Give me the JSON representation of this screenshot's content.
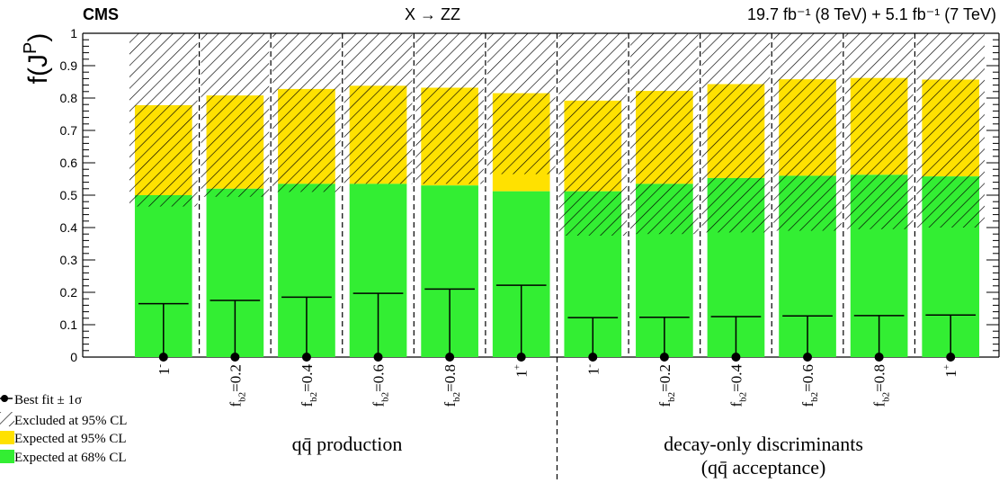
{
  "header": {
    "experiment": "CMS",
    "process": "X → ZZ",
    "lumi": "19.7 fb⁻¹ (8 TeV) + 5.1 fb⁻¹ (7 TeV)"
  },
  "legend": {
    "best_fit": "Best fit ± 1σ",
    "excluded": "Excluded at 95% CL",
    "exp95": "Expected at 95% CL",
    "exp68": "Expected at 68% CL"
  },
  "groups": {
    "production": "qq̄ production",
    "decay_line1": "decay-only discriminants",
    "decay_line2": "(qq̄ acceptance)"
  },
  "colors": {
    "green": "#33ee33",
    "yellow": "#ffe100",
    "hatch": "#000000",
    "line": "#000000"
  },
  "chart_data": {
    "type": "bar",
    "ylabel": "f(J^P)",
    "ylim": [
      0,
      1
    ],
    "yticks": [
      "0",
      "0.1",
      "0.2",
      "0.3",
      "0.4",
      "0.5",
      "0.6",
      "0.7",
      "0.8",
      "0.9",
      "1"
    ],
    "categories": [
      "1⁻",
      "f_b2=0.2",
      "f_b2=0.4",
      "f_b2=0.6",
      "f_b2=0.8",
      "1⁺",
      "1⁻",
      "f_b2=0.2",
      "f_b2=0.4",
      "f_b2=0.6",
      "f_b2=0.8",
      "1⁺"
    ],
    "category_labels": [
      {
        "text": "1",
        "sup": "-",
        "sub": ""
      },
      {
        "text": "f",
        "sub": "b2",
        "rest": "=0.2"
      },
      {
        "text": "f",
        "sub": "b2",
        "rest": "=0.4"
      },
      {
        "text": "f",
        "sub": "b2",
        "rest": "=0.6"
      },
      {
        "text": "f",
        "sub": "b2",
        "rest": "=0.8"
      },
      {
        "text": "1",
        "sup": "+",
        "sub": ""
      },
      {
        "text": "1",
        "sup": "-",
        "sub": ""
      },
      {
        "text": "f",
        "sub": "b2",
        "rest": "=0.2"
      },
      {
        "text": "f",
        "sub": "b2",
        "rest": "=0.4"
      },
      {
        "text": "f",
        "sub": "b2",
        "rest": "=0.6"
      },
      {
        "text": "f",
        "sub": "b2",
        "rest": "=0.8"
      },
      {
        "text": "1",
        "sup": "+",
        "sub": ""
      }
    ],
    "group_boundary_after_index": 5,
    "best_fit": [
      0,
      0,
      0,
      0,
      0,
      0,
      0,
      0,
      0,
      0,
      0,
      0
    ],
    "best_fit_err_up": [
      0.165,
      0.175,
      0.185,
      0.197,
      0.21,
      0.222,
      0.122,
      0.123,
      0.125,
      0.127,
      0.128,
      0.13
    ],
    "expected_68": [
      0.5,
      0.52,
      0.535,
      0.535,
      0.53,
      0.512,
      0.512,
      0.535,
      0.553,
      0.56,
      0.563,
      0.558
    ],
    "expected_95": [
      0.778,
      0.808,
      0.828,
      0.838,
      0.832,
      0.815,
      0.792,
      0.822,
      0.843,
      0.858,
      0.862,
      0.857
    ],
    "excluded_from": [
      0.465,
      0.495,
      0.51,
      0.535,
      0.535,
      0.565,
      0.375,
      0.38,
      0.385,
      0.39,
      0.395,
      0.4
    ],
    "excluded_to": 1.0
  }
}
